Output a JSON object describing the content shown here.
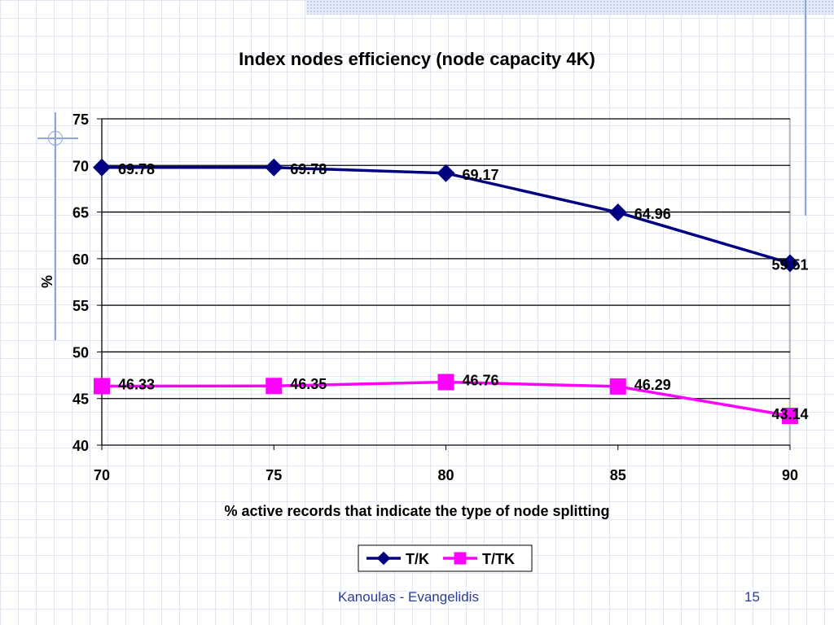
{
  "chart_data": {
    "type": "line",
    "title": "Index nodes efficiency (node capacity 4K)",
    "xlabel": "% active records that indicate the type of node splitting",
    "ylabel": "%",
    "x": [
      70,
      75,
      80,
      85,
      90
    ],
    "xlim": [
      70,
      90
    ],
    "ylim": [
      40,
      75
    ],
    "yticks": [
      40,
      45,
      50,
      55,
      60,
      65,
      70,
      75
    ],
    "grid": true,
    "legend_position": "bottom",
    "series": [
      {
        "name": "T/K",
        "values": [
          69.78,
          69.78,
          69.17,
          64.96,
          59.51
        ],
        "labels": [
          "69.78",
          "69.78",
          "69.17",
          "64.96",
          "59.51"
        ],
        "color": "#000080",
        "marker": "diamond"
      },
      {
        "name": "T/TK",
        "values": [
          46.33,
          46.35,
          46.76,
          46.29,
          43.14
        ],
        "labels": [
          "46.33",
          "46.35",
          "46.76",
          "46.29",
          "43.14"
        ],
        "color": "#ff00ff",
        "marker": "square"
      }
    ]
  },
  "footer": {
    "author": "Kanoulas - Evangelidis",
    "page_number": "15"
  }
}
